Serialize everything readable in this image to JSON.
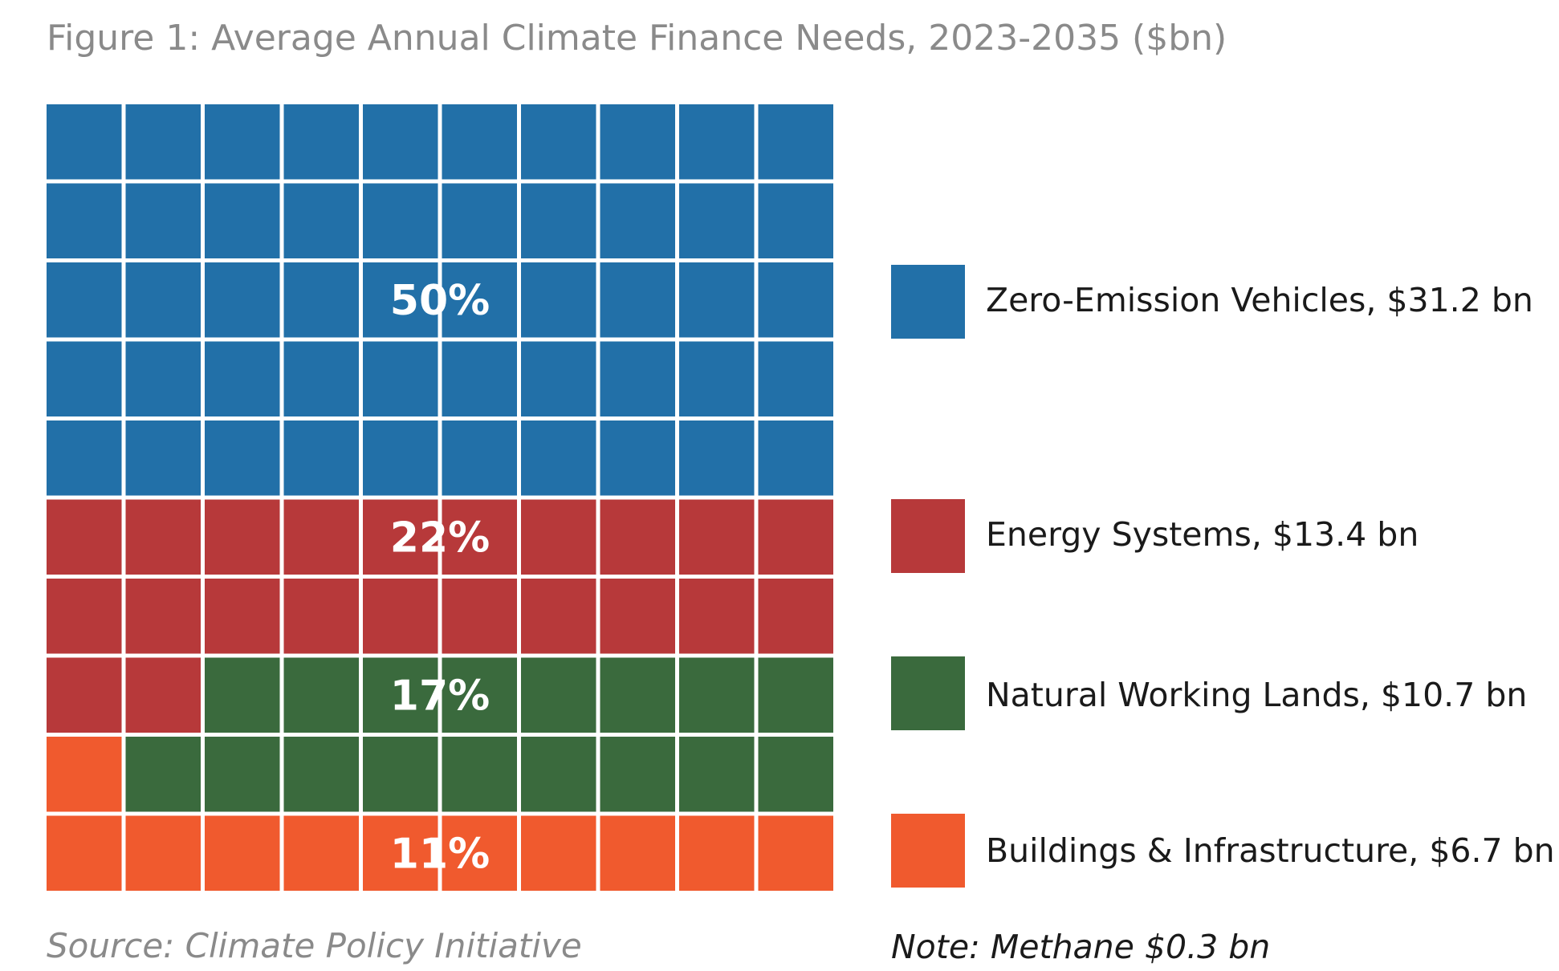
{
  "chart_data": {
    "type": "waffle",
    "title": "Figure 1: Average Annual Climate Finance Needs, 2023-2035 ($bn)",
    "grid": {
      "rows": 10,
      "cols": 10
    },
    "series": [
      {
        "name": "Zero-Emission Vehicles, $31.2 bn",
        "category": "Zero-Emission Vehicles",
        "value_bn": 31.2,
        "cells": 50,
        "percent_label": "50%",
        "color": "#2270a8"
      },
      {
        "name": "Energy Systems, $13.4 bn",
        "category": "Energy Systems",
        "value_bn": 13.4,
        "cells": 22,
        "percent_label": "22%",
        "color": "#b7393a"
      },
      {
        "name": "Natural Working Lands, $10.7 bn",
        "category": "Natural Working Lands",
        "value_bn": 10.7,
        "cells": 17,
        "percent_label": "17%",
        "color": "#3a6a3d"
      },
      {
        "name": "Buildings & Infrastructure, $6.7 bn",
        "category": "Buildings & Infrastructure",
        "value_bn": 6.7,
        "cells": 11,
        "percent_label": "11%",
        "color": "#f05a2e"
      }
    ],
    "source": "Source: Climate Policy Initiative",
    "note": "Note: Methane $0.3 bn"
  }
}
